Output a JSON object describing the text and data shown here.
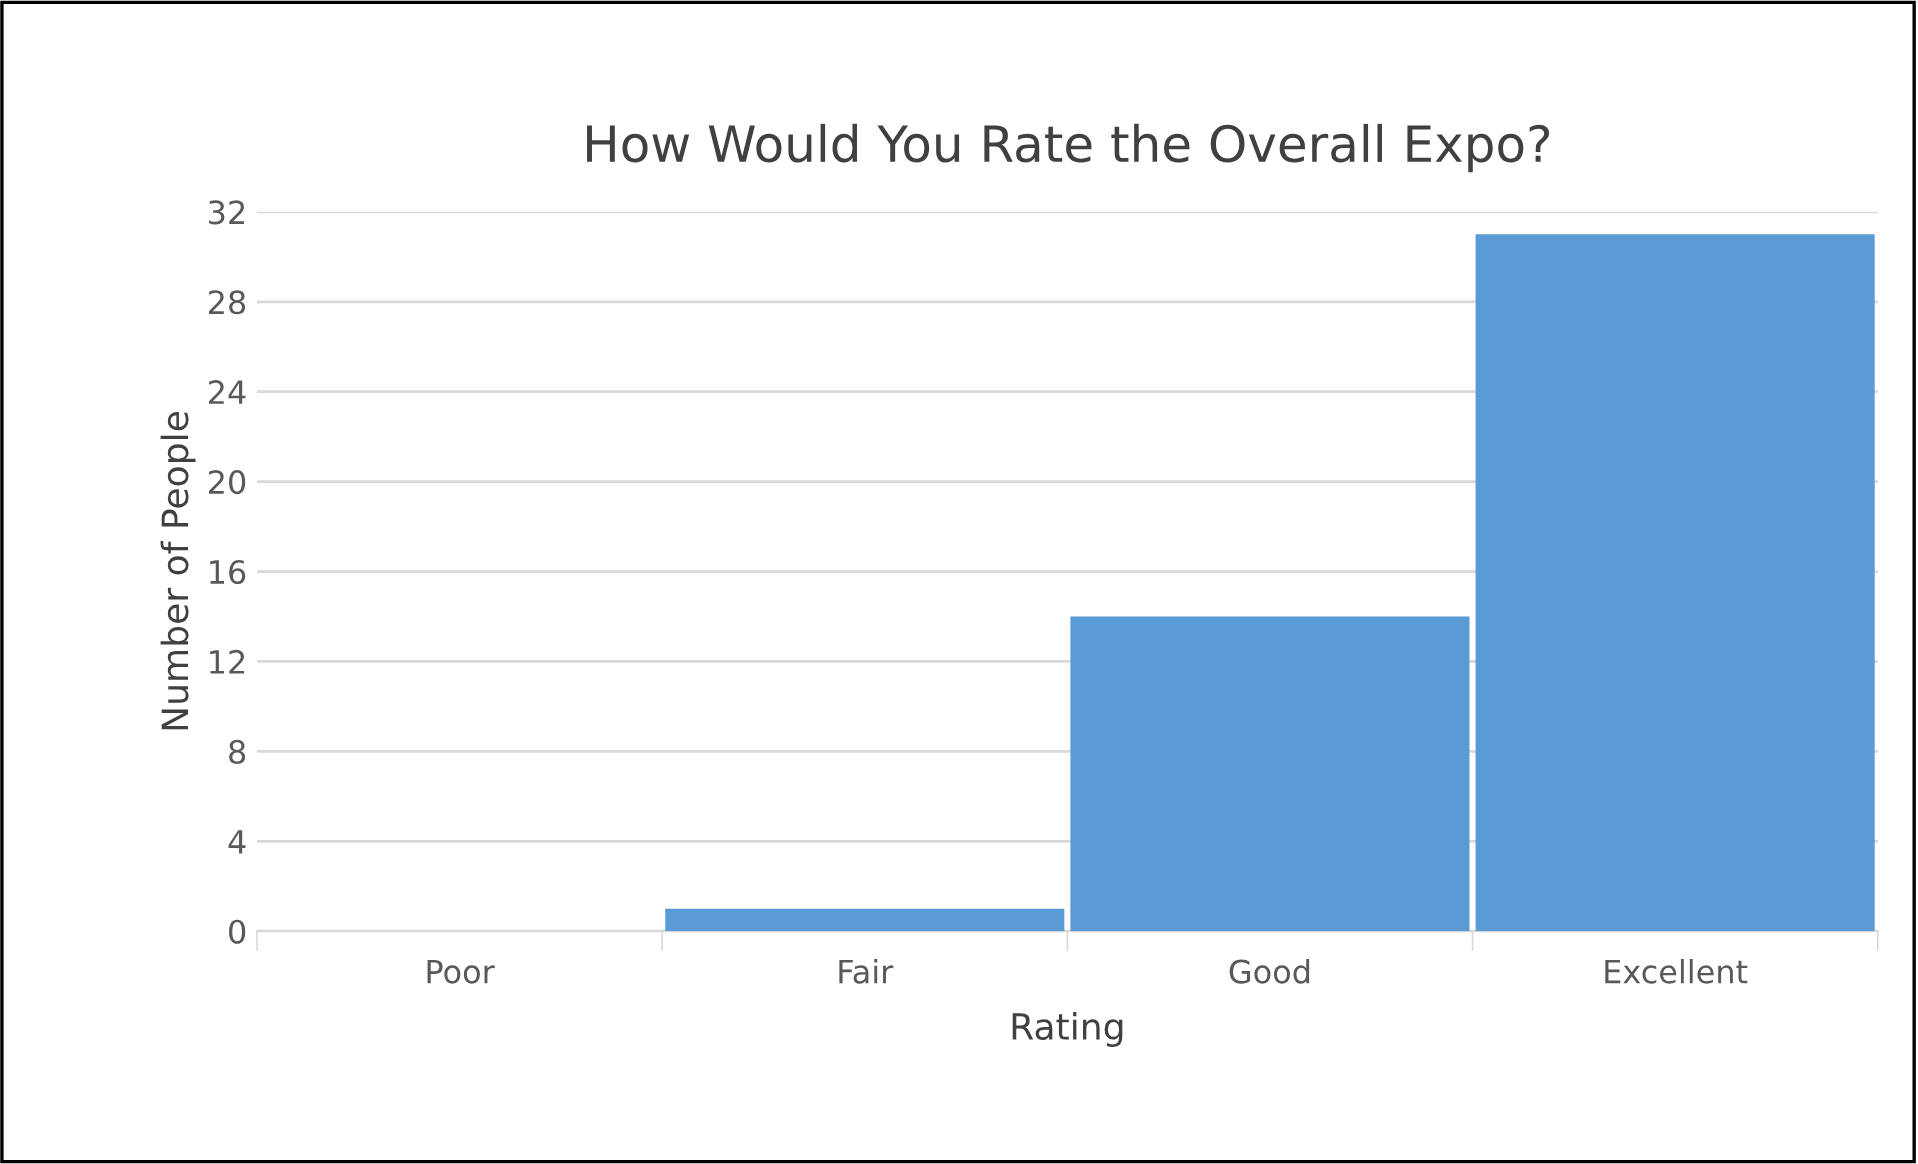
{
  "chart_data": {
    "type": "bar",
    "title": "How Would You Rate the Overall Expo?",
    "xlabel": "Rating",
    "ylabel": "Number of People",
    "categories": [
      "Poor",
      "Fair",
      "Good",
      "Excellent"
    ],
    "values": [
      0,
      1,
      14,
      31
    ],
    "color": "#5b9bd5",
    "ylim": [
      0,
      32
    ],
    "yticks": [
      0,
      4,
      8,
      12,
      16,
      20,
      24,
      28,
      32
    ],
    "grid": "y"
  }
}
